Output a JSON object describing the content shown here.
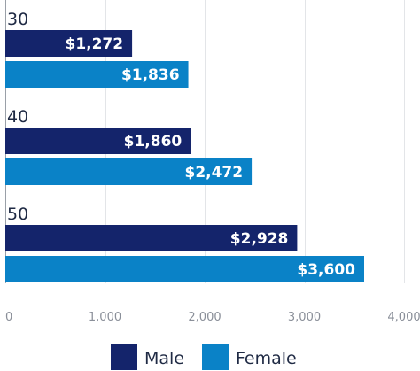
{
  "chart_data": {
    "type": "bar",
    "orientation": "horizontal",
    "categories": [
      "30",
      "40",
      "50"
    ],
    "series": [
      {
        "name": "Male",
        "values": [
          1272,
          1860,
          2928
        ],
        "labels": [
          "$1,272",
          "$1,860",
          "$2,928"
        ],
        "color": "#14246b"
      },
      {
        "name": "Female",
        "values": [
          1836,
          2472,
          3600
        ],
        "labels": [
          "$1,836",
          "$2,472",
          "$3,600"
        ],
        "color": "#0a82c7"
      }
    ],
    "xlim": [
      0,
      4000
    ],
    "xticks": [
      0,
      1000,
      2000,
      3000,
      4000
    ],
    "xtick_labels": [
      "0",
      "1,000",
      "2,000",
      "3,000",
      "4,000"
    ],
    "grid": true,
    "legend": "bottom",
    "title": "",
    "xlabel": "",
    "ylabel": ""
  }
}
